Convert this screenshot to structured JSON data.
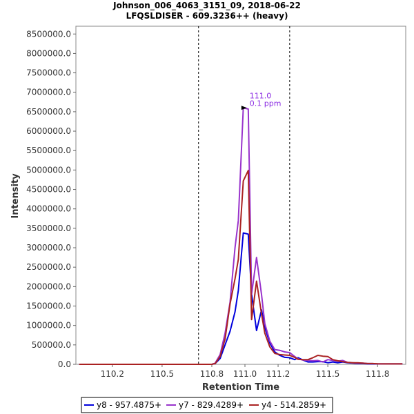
{
  "chart_data": {
    "type": "line",
    "title": "Johnson_006_4063_3151_09, 2018-06-22",
    "subtitle": "LFQSLDISER - 609.3236++ (heavy)",
    "xlabel": "Retention Time",
    "ylabel": "Intensity",
    "xlim": [
      109.98,
      111.97
    ],
    "ylim": [
      0,
      8700000
    ],
    "x_ticks": [
      110.2,
      110.5,
      110.8,
      111.0,
      111.2,
      111.5,
      111.8
    ],
    "x_tick_labels": [
      "110.2",
      "110.5",
      "110.8",
      "111.0",
      "111.2",
      "111.5",
      "111.8"
    ],
    "y_ticks": [
      0,
      500000,
      1000000,
      1500000,
      2000000,
      2500000,
      3000000,
      3500000,
      4000000,
      4500000,
      5000000,
      5500000,
      6000000,
      6500000,
      7000000,
      7500000,
      8000000,
      8500000
    ],
    "y_tick_labels": [
      "0.0",
      "500000.0",
      "1000000.0",
      "1500000.0",
      "2000000.0",
      "2500000.0",
      "3000000.0",
      "3500000.0",
      "4000000.0",
      "4500000.0",
      "5000000.0",
      "5500000.0",
      "6000000.0",
      "6500000.0",
      "7000000.0",
      "7500000.0",
      "8000000.0",
      "8500000.0"
    ],
    "vlines": [
      110.72,
      111.27
    ],
    "annotation": {
      "x": 111.02,
      "y": 6600000,
      "line1": "111.0",
      "line2": "0.1 ppm",
      "color": "#8a2be2"
    },
    "grid": false,
    "legend_position": "bottom",
    "x": [
      110.0,
      110.1,
      110.2,
      110.3,
      110.4,
      110.5,
      110.6,
      110.7,
      110.8,
      110.82,
      110.85,
      110.88,
      110.91,
      110.94,
      110.96,
      110.99,
      111.02,
      111.04,
      111.07,
      111.1,
      111.12,
      111.15,
      111.18,
      111.21,
      111.24,
      111.27,
      111.3,
      111.32,
      111.35,
      111.38,
      111.41,
      111.44,
      111.47,
      111.5,
      111.53,
      111.56,
      111.59,
      111.62,
      111.65,
      111.68,
      111.71,
      111.74,
      111.77,
      111.8,
      111.85,
      111.9,
      111.95
    ],
    "series": [
      {
        "name": "y8 - 957.4875+",
        "color": "#0000dd",
        "values": [
          0,
          0,
          0,
          0,
          0,
          0,
          0,
          0,
          0,
          20000,
          150000,
          500000,
          850000,
          1350000,
          1900000,
          3380000,
          3350000,
          1800000,
          870000,
          1400000,
          950000,
          550000,
          320000,
          230000,
          180000,
          170000,
          120000,
          170000,
          110000,
          60000,
          60000,
          70000,
          70000,
          40000,
          60000,
          40000,
          60000,
          40000,
          30000,
          20000,
          20000,
          10000,
          10000,
          10000,
          10000,
          10000,
          10000
        ]
      },
      {
        "name": "y7 - 829.4289+",
        "color": "#9933cc",
        "values": [
          0,
          0,
          0,
          0,
          0,
          0,
          0,
          0,
          0,
          30000,
          250000,
          800000,
          1600000,
          3000000,
          3700000,
          6600000,
          6570000,
          1800000,
          2750000,
          1800000,
          1050000,
          600000,
          380000,
          360000,
          320000,
          300000,
          200000,
          140000,
          110000,
          100000,
          90000,
          100000,
          60000,
          120000,
          100000,
          80000,
          100000,
          50000,
          40000,
          30000,
          30000,
          20000,
          20000,
          10000,
          10000,
          10000,
          10000
        ]
      },
      {
        "name": "y4 - 514.2859+",
        "color": "#aa2222",
        "values": [
          0,
          0,
          0,
          0,
          0,
          0,
          0,
          0,
          0,
          20000,
          200000,
          650000,
          1550000,
          2200000,
          2700000,
          4720000,
          4990000,
          1150000,
          2140000,
          1300000,
          800000,
          450000,
          280000,
          250000,
          240000,
          230000,
          180000,
          130000,
          120000,
          120000,
          170000,
          230000,
          210000,
          200000,
          120000,
          90000,
          70000,
          50000,
          40000,
          40000,
          30000,
          20000,
          20000,
          15000,
          10000,
          10000,
          10000
        ]
      }
    ]
  }
}
